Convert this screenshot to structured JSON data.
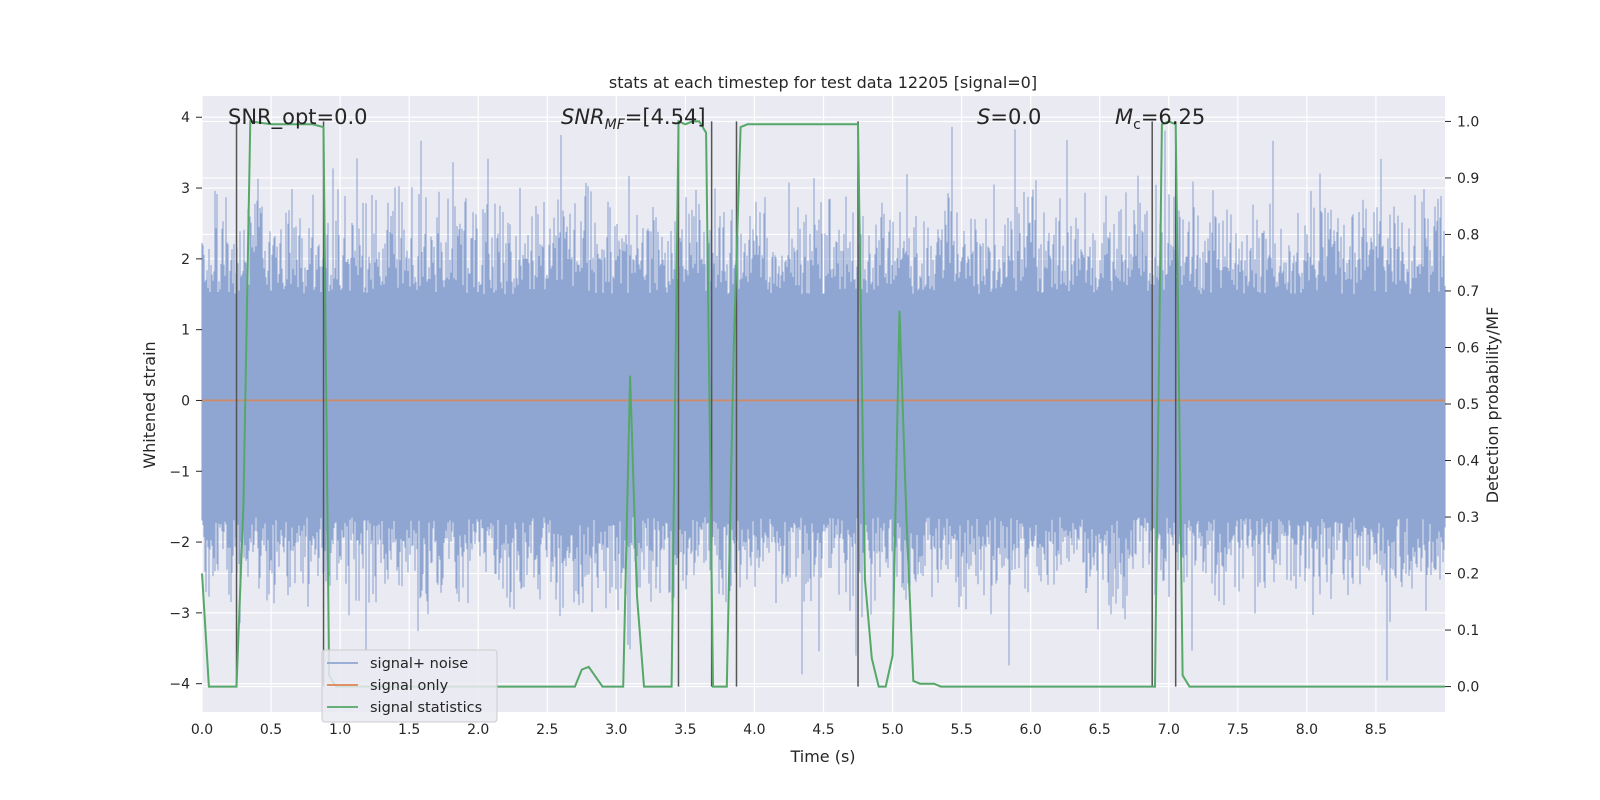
{
  "chart_data": {
    "type": "line",
    "title": "stats at each timestep for test data 12205 [signal=0]",
    "xlabel": "Time (s)",
    "ylabel_left": "Whitened strain",
    "ylabel_right": "Detection probability/MF",
    "xlim": [
      0.0,
      9.0
    ],
    "ylim_left": [
      -4.4,
      4.3
    ],
    "ylim_right": [
      -0.045,
      1.045
    ],
    "x_ticks": [
      "0.0",
      "0.5",
      "1.0",
      "1.5",
      "2.0",
      "2.5",
      "3.0",
      "3.5",
      "4.0",
      "4.5",
      "5.0",
      "5.5",
      "6.0",
      "6.5",
      "7.0",
      "7.5",
      "8.0",
      "8.5"
    ],
    "y_ticks_left": [
      "4",
      "3",
      "2",
      "1",
      "0",
      "−1",
      "−2",
      "−3",
      "−4"
    ],
    "y_ticks_right": [
      "1.0",
      "0.9",
      "0.8",
      "0.7",
      "0.6",
      "0.5",
      "0.4",
      "0.3",
      "0.2",
      "0.1",
      "0.0"
    ],
    "grid": true,
    "legend_position": "lower-left",
    "annotations": {
      "snr_opt": "SNR_opt=0.0",
      "snr_mf_prefix": "SNR",
      "snr_mf_sub": "MF",
      "snr_mf_suffix": "=[4.54]",
      "s_prefix": "S",
      "s_suffix": "=0.0",
      "mc_prefix": "M",
      "mc_sub": "c",
      "mc_suffix": "=6.25"
    },
    "series": [
      {
        "name": "signal+ noise",
        "color": "#8fa6d2",
        "axis": "left",
        "description_only": false,
        "style": "dense noise band",
        "core_range": [
          -1.65,
          1.5
        ],
        "typical_extent": [
          -2.5,
          2.5
        ],
        "spike_max": 3.9,
        "spike_min": -4.05
      },
      {
        "name": "signal only",
        "color": "#dd8452",
        "axis": "left",
        "x": [
          0.0,
          9.0
        ],
        "y": [
          0.0,
          0.0
        ]
      },
      {
        "name": "signal statistics",
        "color": "#55a868",
        "axis": "right",
        "x": [
          0.0,
          0.05,
          0.1,
          0.2,
          0.25,
          0.3,
          0.35,
          0.5,
          0.8,
          0.88,
          0.92,
          0.97,
          1.05,
          1.5,
          2.0,
          2.5,
          2.6,
          2.7,
          2.75,
          2.8,
          2.9,
          3.0,
          3.05,
          3.1,
          3.15,
          3.2,
          3.25,
          3.3,
          3.4,
          3.45,
          3.5,
          3.55,
          3.6,
          3.65,
          3.7,
          3.75,
          3.8,
          3.85,
          3.9,
          3.95,
          4.0,
          4.5,
          4.7,
          4.75,
          4.8,
          4.85,
          4.9,
          4.95,
          5.0,
          5.05,
          5.1,
          5.15,
          5.2,
          5.25,
          5.3,
          5.35,
          5.4,
          6.0,
          6.5,
          6.85,
          6.9,
          6.95,
          7.0,
          7.05,
          7.1,
          7.15,
          7.2,
          7.5,
          8.0,
          8.5,
          9.0
        ],
        "y": [
          0.2,
          0.0,
          0.0,
          0.0,
          0.0,
          0.32,
          1.0,
          0.995,
          0.995,
          0.99,
          0.02,
          0.0,
          0.0,
          0.0,
          0.0,
          0.0,
          0.0,
          0.0,
          0.03,
          0.035,
          0.0,
          0.0,
          0.0,
          0.55,
          0.16,
          0.0,
          0.0,
          0.0,
          0.0,
          1.0,
          0.995,
          1.0,
          1.0,
          0.98,
          0.0,
          0.0,
          0.0,
          0.6,
          0.99,
          0.995,
          0.995,
          0.995,
          0.995,
          0.995,
          0.19,
          0.05,
          0.0,
          0.0,
          0.055,
          0.665,
          0.3,
          0.01,
          0.005,
          0.005,
          0.005,
          0.0,
          0.0,
          0.0,
          0.0,
          0.0,
          0.0,
          0.995,
          1.0,
          0.995,
          0.02,
          0.0,
          0.0,
          0.0,
          0.0,
          0.0,
          0.0
        ]
      }
    ],
    "vertical_lines": {
      "color": "#555555",
      "x": [
        0.25,
        0.88,
        3.45,
        3.69,
        3.87,
        4.75,
        6.88,
        7.05
      ]
    },
    "legend": [
      "signal+ noise",
      "signal only",
      "signal statistics"
    ]
  }
}
